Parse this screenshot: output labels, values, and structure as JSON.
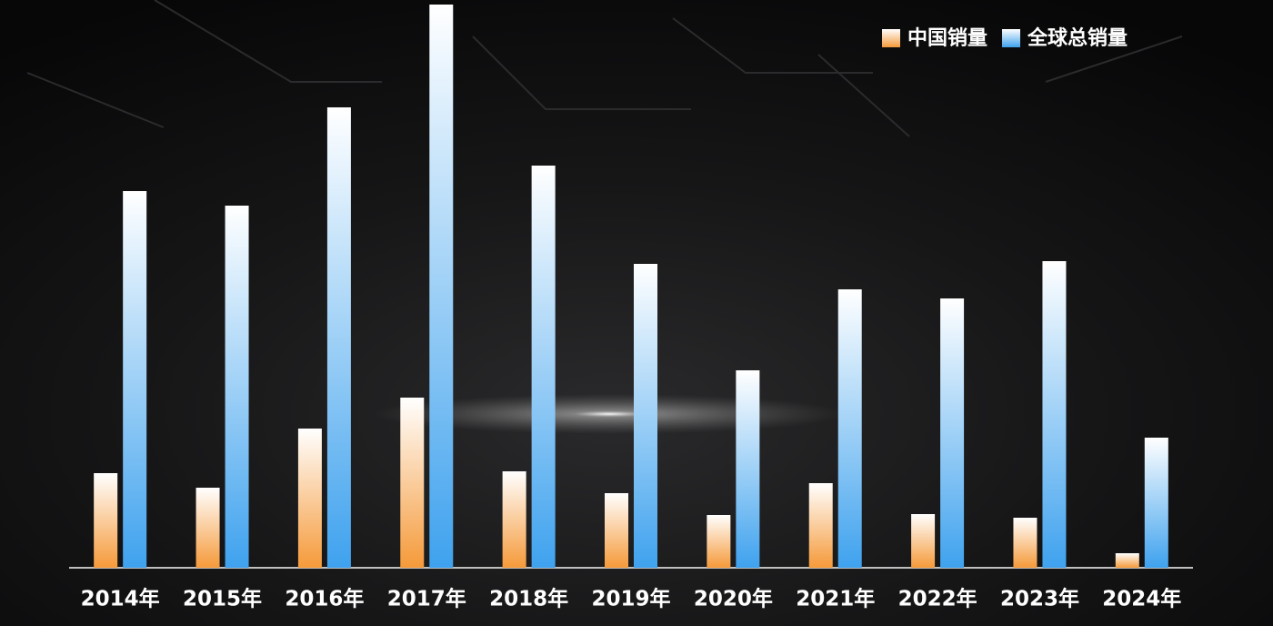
{
  "chart_data": {
    "type": "bar",
    "categories": [
      "2014年",
      "2015年",
      "2016年",
      "2017年",
      "2018年",
      "2019年",
      "2020年",
      "2021年",
      "2022年",
      "2023年",
      "2024年"
    ],
    "series": [
      {
        "name": "中国销量",
        "color": "#f59a3a",
        "values": [
          104,
          88,
          153,
          187,
          106,
          82,
          58,
          93,
          59,
          55,
          16
        ]
      },
      {
        "name": "全球总销量",
        "color": "#3fa2ee",
        "values": [
          414,
          398,
          506,
          619,
          442,
          334,
          217,
          306,
          296,
          337,
          143
        ]
      }
    ],
    "ylim": [
      0,
      624
    ],
    "legend": "top-right"
  }
}
